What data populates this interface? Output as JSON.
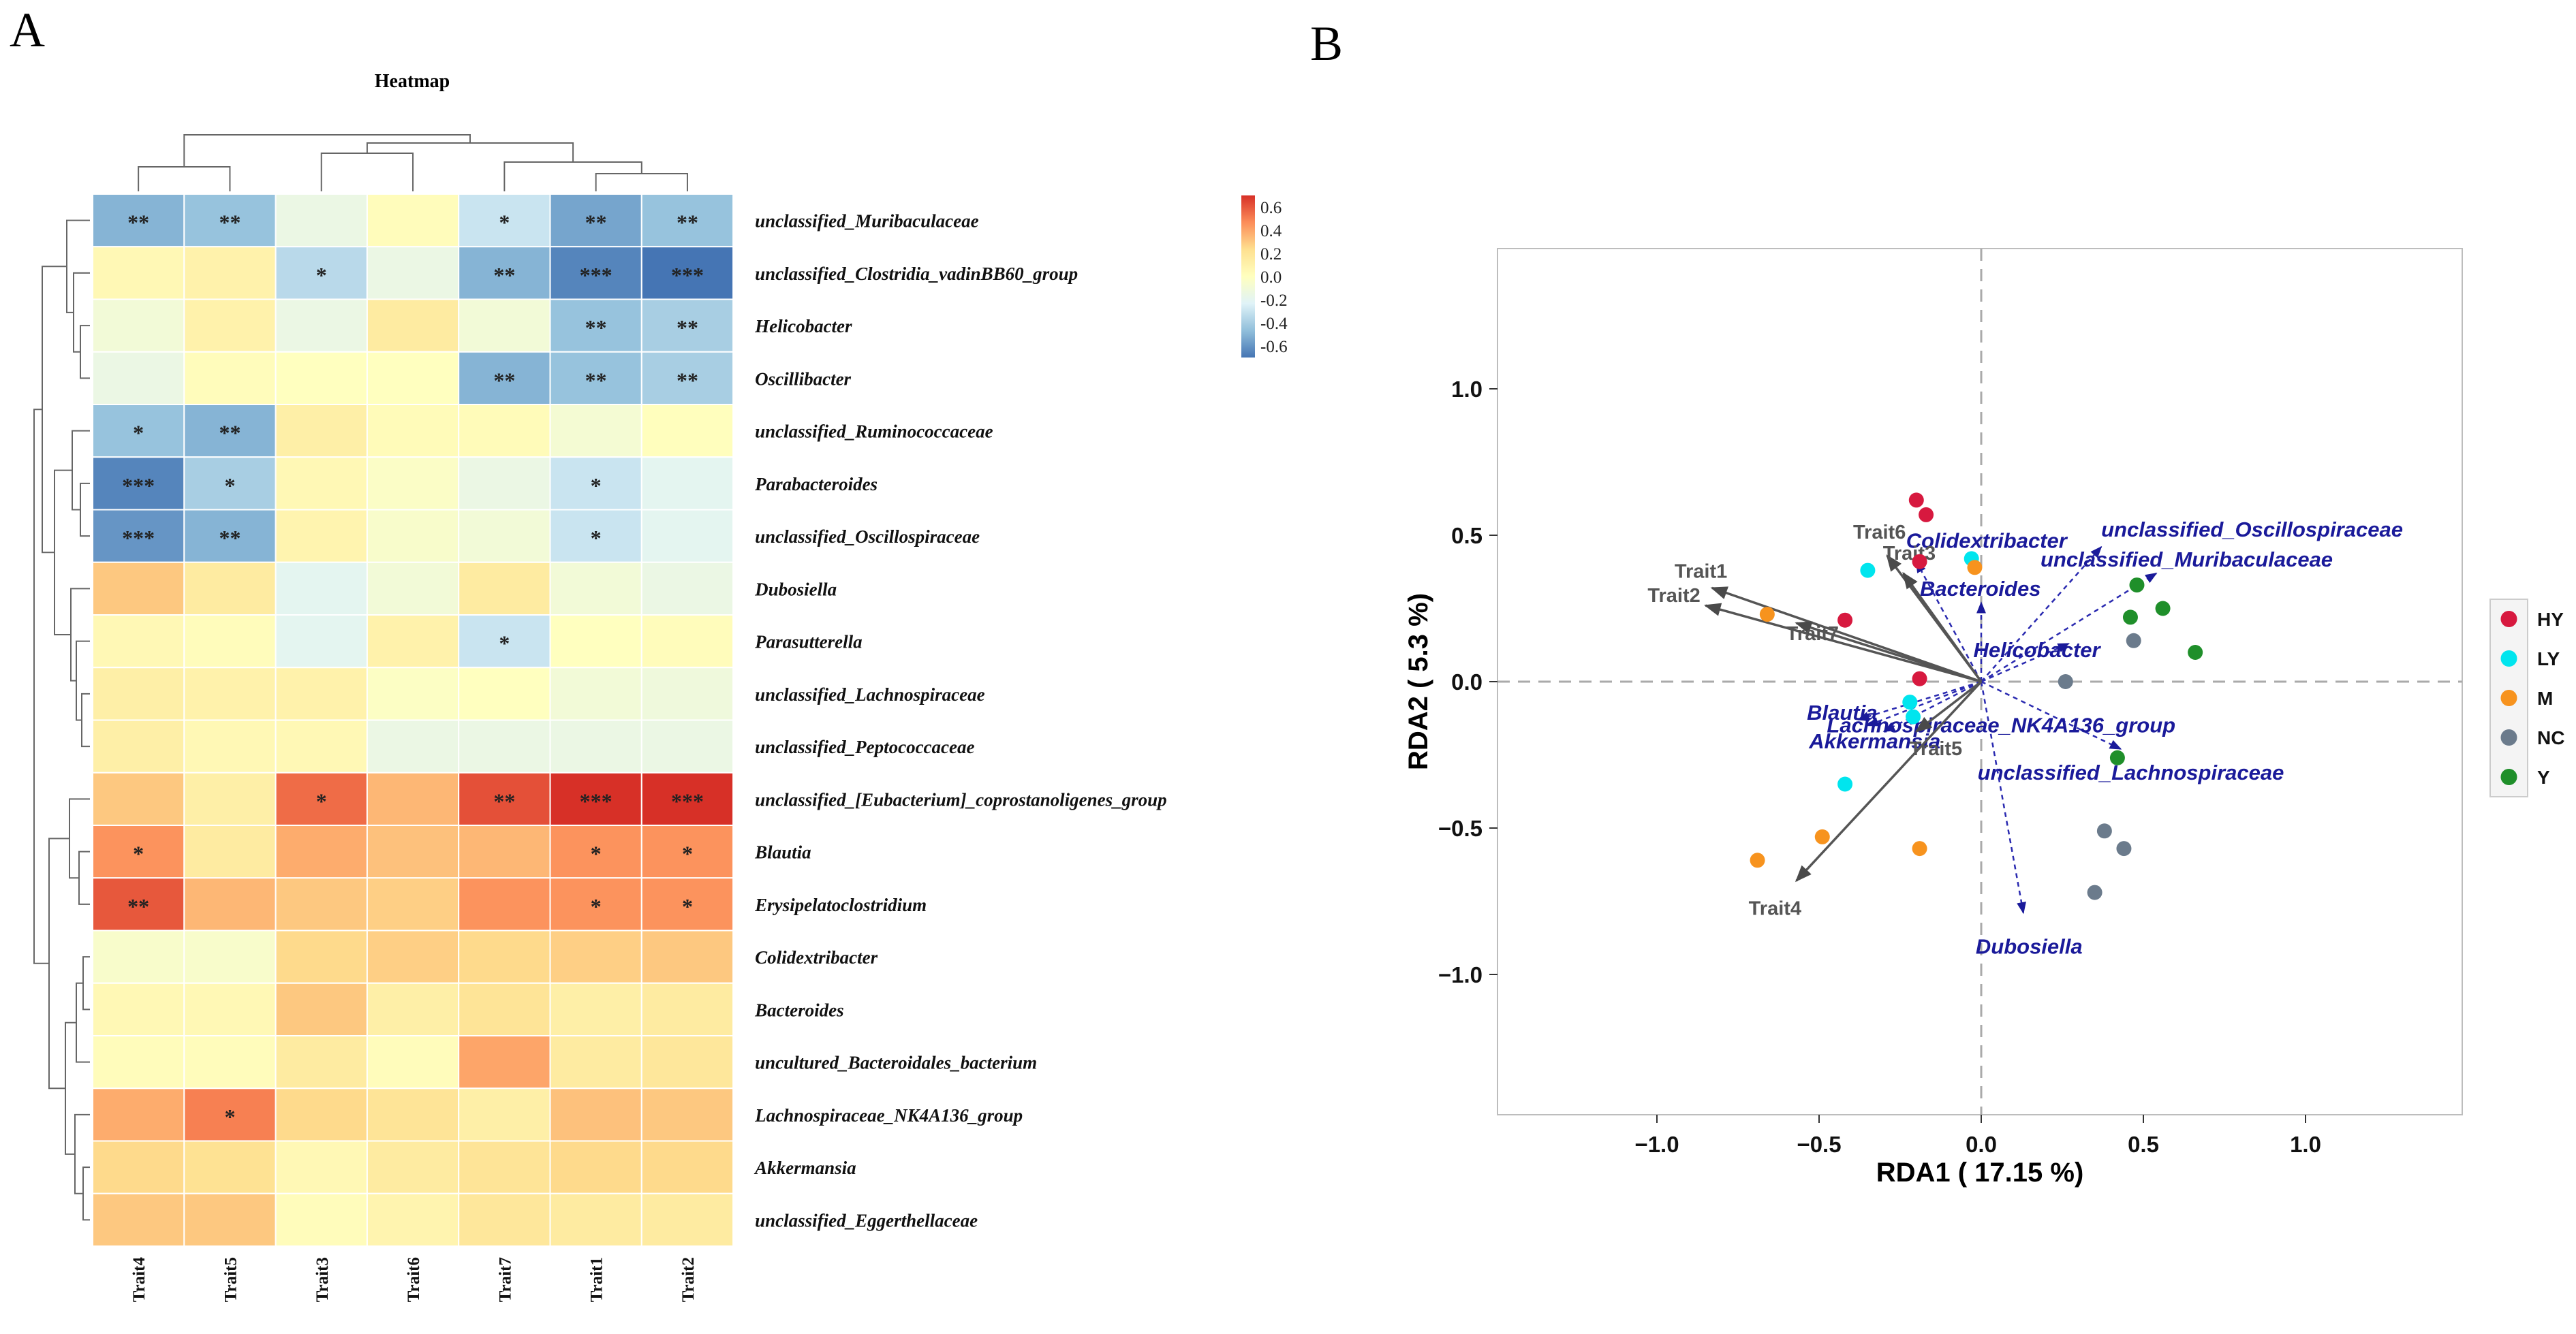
{
  "panels": {
    "a_label": "A",
    "b_label": "B"
  },
  "chart_data": [
    {
      "type": "heatmap",
      "title": "Heatmap",
      "columns": [
        "Trait4",
        "Trait5",
        "Trait3",
        "Trait6",
        "Trait7",
        "Trait1",
        "Trait2"
      ],
      "rows": [
        "unclassified_Muribaculaceae",
        "unclassified_Clostridia_vadinBB60_group",
        "Helicobacter",
        "Oscillibacter",
        "unclassified_Ruminococcaceae",
        "Parabacteroides",
        "unclassified_Oscillospiraceae",
        "Dubosiella",
        "Parasutterella",
        "unclassified_Lachnospiraceae",
        "unclassified_Peptococcaceae",
        "unclassified_[Eubacterium]_coprostanoligenes_group",
        "Blautia",
        "Erysipelatoclostridium",
        "Colidextribacter",
        "Bacteroides",
        "uncultured_Bacteroidales_bacterium",
        "Lachnospiraceae_NK4A136_group",
        "Akkermansia",
        "unclassified_Eggerthellaceae"
      ],
      "values": [
        [
          -0.5,
          -0.45,
          -0.15,
          0.02,
          -0.3,
          -0.55,
          -0.45
        ],
        [
          0.05,
          0.1,
          -0.35,
          -0.15,
          -0.5,
          -0.65,
          -0.7
        ],
        [
          -0.1,
          0.1,
          -0.15,
          0.15,
          -0.1,
          -0.45,
          -0.4
        ],
        [
          -0.15,
          0.02,
          0.0,
          0.0,
          -0.5,
          -0.45,
          -0.4
        ],
        [
          -0.45,
          -0.5,
          0.12,
          0.03,
          0.03,
          -0.08,
          0.01
        ],
        [
          -0.65,
          -0.4,
          0.05,
          -0.03,
          -0.15,
          -0.3,
          -0.2
        ],
        [
          -0.6,
          -0.5,
          0.08,
          -0.05,
          -0.1,
          -0.3,
          -0.2
        ],
        [
          0.3,
          0.15,
          -0.2,
          -0.1,
          0.15,
          -0.1,
          -0.15
        ],
        [
          0.05,
          0.02,
          -0.2,
          0.1,
          -0.3,
          0.0,
          0.02
        ],
        [
          0.12,
          0.1,
          0.1,
          -0.02,
          0.0,
          -0.1,
          -0.12
        ],
        [
          0.12,
          0.05,
          0.05,
          -0.15,
          -0.15,
          -0.15,
          -0.15
        ],
        [
          0.3,
          0.12,
          0.55,
          0.35,
          0.62,
          0.72,
          0.72
        ],
        [
          0.45,
          0.15,
          0.38,
          0.32,
          0.35,
          0.45,
          0.45
        ],
        [
          0.6,
          0.35,
          0.3,
          0.28,
          0.45,
          0.45,
          0.45
        ],
        [
          -0.05,
          -0.05,
          0.25,
          0.28,
          0.25,
          0.28,
          0.3
        ],
        [
          0.05,
          0.05,
          0.3,
          0.12,
          0.2,
          0.12,
          0.15
        ],
        [
          0.02,
          0.02,
          0.15,
          0.02,
          0.4,
          0.15,
          0.18
        ],
        [
          0.38,
          0.5,
          0.25,
          0.2,
          0.12,
          0.32,
          0.3
        ],
        [
          0.25,
          0.22,
          0.05,
          0.15,
          0.2,
          0.25,
          0.25
        ],
        [
          0.3,
          0.3,
          0.02,
          0.08,
          0.18,
          0.15,
          0.15
        ]
      ],
      "significance": [
        [
          "**",
          "**",
          "",
          "",
          "*",
          "**",
          "**"
        ],
        [
          "",
          "",
          "*",
          "",
          "**",
          "***",
          "***"
        ],
        [
          "",
          "",
          "",
          "",
          "",
          "**",
          "**"
        ],
        [
          "",
          "",
          "",
          "",
          "**",
          "**",
          "**"
        ],
        [
          "*",
          "**",
          "",
          "",
          "",
          "",
          ""
        ],
        [
          "***",
          "*",
          "",
          "",
          "",
          "*",
          ""
        ],
        [
          "***",
          "**",
          "",
          "",
          "",
          "*",
          ""
        ],
        [
          "",
          "",
          "",
          "",
          "",
          "",
          ""
        ],
        [
          "",
          "",
          "",
          "",
          "*",
          "",
          ""
        ],
        [
          "",
          "",
          "",
          "",
          "",
          "",
          ""
        ],
        [
          "",
          "",
          "",
          "",
          "",
          "",
          ""
        ],
        [
          "",
          "",
          "*",
          "",
          "**",
          "***",
          "***"
        ],
        [
          "*",
          "",
          "",
          "",
          "",
          "*",
          "*"
        ],
        [
          "**",
          "",
          "",
          "",
          "",
          "*",
          "*"
        ],
        [
          "",
          "",
          "",
          "",
          "",
          "",
          ""
        ],
        [
          "",
          "",
          "",
          "",
          "",
          "",
          ""
        ],
        [
          "",
          "",
          "",
          "",
          "",
          "",
          ""
        ],
        [
          "",
          "*",
          "",
          "",
          "",
          "",
          ""
        ],
        [
          "",
          "",
          "",
          "",
          "",
          "",
          ""
        ],
        [
          "",
          "",
          "",
          "",
          "",
          "",
          ""
        ]
      ],
      "color_scale": {
        "min": -0.7,
        "max": 0.7,
        "ticks": [
          "0.6",
          "0.4",
          "0.2",
          "0.0",
          "-0.2",
          "-0.4",
          "-0.6"
        ],
        "colors": [
          "#4575b4",
          "#91bfdb",
          "#e0f3f8",
          "#ffffbf",
          "#fee090",
          "#fc8d59",
          "#d73027"
        ]
      }
    },
    {
      "type": "scatter",
      "xlabel": "RDA1 ( 17.15 %)",
      "ylabel": "RDA2 ( 5.3 %)",
      "xlim": [
        -1.5,
        1.5
      ],
      "ylim": [
        -1.5,
        1.5
      ],
      "xticks": [
        -1.0,
        -0.5,
        0.0,
        0.5,
        1.0
      ],
      "yticks": [
        -1.0,
        -0.5,
        0.0,
        0.5,
        1.0
      ],
      "xtick_labels": [
        "−1.0",
        "−0.5",
        "0.0",
        "0.5",
        "1.0"
      ],
      "ytick_labels": [
        "−1.0",
        "−0.5",
        "0.0",
        "0.5",
        "1.0"
      ],
      "legend": [
        {
          "name": "HY",
          "color": "#d7193f"
        },
        {
          "name": "LY",
          "color": "#00e5ee"
        },
        {
          "name": "M",
          "color": "#f7931e"
        },
        {
          "name": "NC",
          "color": "#6b7b8c"
        },
        {
          "name": "Y",
          "color": "#1f8f2a"
        }
      ],
      "points": [
        {
          "group": "HY",
          "x": -0.2,
          "y": 0.62
        },
        {
          "group": "HY",
          "x": -0.17,
          "y": 0.57
        },
        {
          "group": "HY",
          "x": -0.19,
          "y": 0.41
        },
        {
          "group": "HY",
          "x": -0.42,
          "y": 0.21
        },
        {
          "group": "HY",
          "x": -0.19,
          "y": 0.01
        },
        {
          "group": "LY",
          "x": -0.35,
          "y": 0.38
        },
        {
          "group": "LY",
          "x": -0.03,
          "y": 0.42
        },
        {
          "group": "LY",
          "x": -0.22,
          "y": -0.07
        },
        {
          "group": "LY",
          "x": -0.21,
          "y": -0.12
        },
        {
          "group": "LY",
          "x": -0.42,
          "y": -0.35
        },
        {
          "group": "M",
          "x": -0.02,
          "y": 0.39
        },
        {
          "group": "M",
          "x": -0.66,
          "y": 0.23
        },
        {
          "group": "M",
          "x": -0.49,
          "y": -0.53
        },
        {
          "group": "M",
          "x": -0.19,
          "y": -0.57
        },
        {
          "group": "M",
          "x": -0.69,
          "y": -0.61
        },
        {
          "group": "NC",
          "x": 0.47,
          "y": 0.14
        },
        {
          "group": "NC",
          "x": 0.26,
          "y": 0.0
        },
        {
          "group": "NC",
          "x": 0.38,
          "y": -0.51
        },
        {
          "group": "NC",
          "x": 0.44,
          "y": -0.57
        },
        {
          "group": "NC",
          "x": 0.35,
          "y": -0.72
        },
        {
          "group": "Y",
          "x": 0.48,
          "y": 0.33
        },
        {
          "group": "Y",
          "x": 0.56,
          "y": 0.25
        },
        {
          "group": "Y",
          "x": 0.46,
          "y": 0.22
        },
        {
          "group": "Y",
          "x": 0.66,
          "y": 0.1
        },
        {
          "group": "Y",
          "x": 0.42,
          "y": -0.26
        }
      ],
      "trait_arrows": [
        {
          "label": "Trait1",
          "x": -0.83,
          "y": 0.32
        },
        {
          "label": "Trait2",
          "x": -0.85,
          "y": 0.26
        },
        {
          "label": "Trait7",
          "x": -0.57,
          "y": 0.2
        },
        {
          "label": "Trait6",
          "x": -0.29,
          "y": 0.43
        },
        {
          "label": "Trait3",
          "x": -0.24,
          "y": 0.37
        },
        {
          "label": "Trait5",
          "x": -0.2,
          "y": -0.17
        },
        {
          "label": "Trait4",
          "x": -0.57,
          "y": -0.68
        }
      ],
      "genus_arrows": [
        {
          "label": "unclassified_Oscillospiraceae",
          "x": 0.37,
          "y": 0.46
        },
        {
          "label": "unclassified_Muribaculaceae",
          "x": 0.54,
          "y": 0.37
        },
        {
          "label": "Helicobacter",
          "x": 0.27,
          "y": 0.13
        },
        {
          "label": "unclassified_Lachnospiraceae",
          "x": 0.43,
          "y": -0.23
        },
        {
          "label": "Dubosiella",
          "x": 0.13,
          "y": -0.79
        },
        {
          "label": "Bacteroides",
          "x": 0.0,
          "y": 0.27
        },
        {
          "label": "Colidextribacter",
          "x": -0.2,
          "y": 0.41
        },
        {
          "label": "Lachnospiraceae_NK4A136_group",
          "x": -0.35,
          "y": -0.15
        },
        {
          "label": "Blautia",
          "x": -0.38,
          "y": -0.13
        },
        {
          "label": "Akkermansia",
          "x": -0.3,
          "y": -0.17
        }
      ]
    }
  ]
}
